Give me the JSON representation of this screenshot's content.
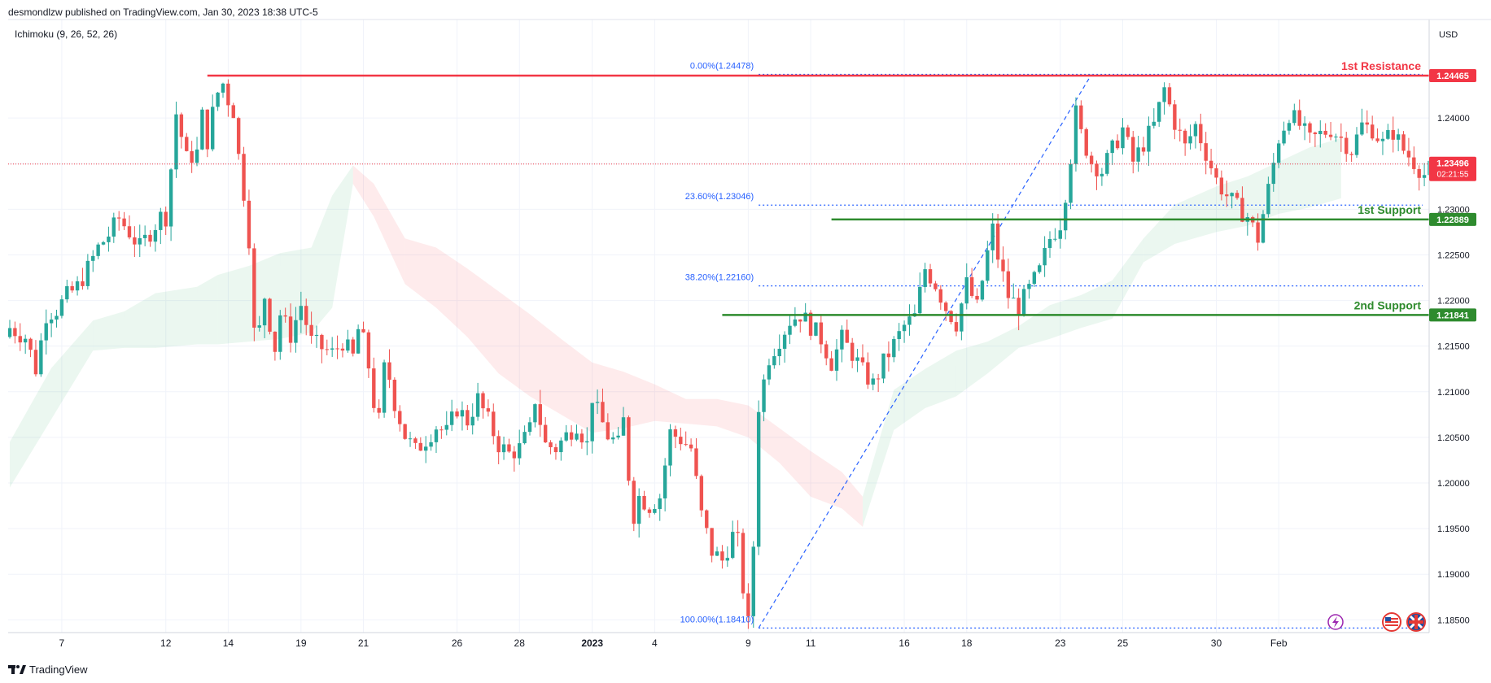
{
  "header": {
    "publisher": "desmondlzw published on TradingView.com, Jan 30, 2023 18:38 UTC-5",
    "indicator": "Ichimoku (9, 26, 52, 26)",
    "currency": "USD"
  },
  "footer": {
    "brand": "TradingView"
  },
  "colors": {
    "up": "#26a69a",
    "down": "#ef5350",
    "resistance": "#f23645",
    "support": "#2e8b2e",
    "fib": "#2962ff"
  },
  "chart_data": {
    "type": "candlestick",
    "y_axis": {
      "range": [
        1.1836,
        1.2508
      ],
      "ticks": [
        "1.24000",
        "1.23500",
        "1.23000",
        "1.22500",
        "1.22000",
        "1.21500",
        "1.21000",
        "1.20500",
        "1.20000",
        "1.19500",
        "1.19000",
        "1.18500"
      ]
    },
    "x_axis": {
      "ticks": [
        {
          "label": "7",
          "bar": 10
        },
        {
          "label": "12",
          "bar": 30
        },
        {
          "label": "14",
          "bar": 42
        },
        {
          "label": "19",
          "bar": 56
        },
        {
          "label": "21",
          "bar": 68
        },
        {
          "label": "26",
          "bar": 86
        },
        {
          "label": "28",
          "bar": 98
        },
        {
          "label": "2023",
          "bar": 112
        },
        {
          "label": "4",
          "bar": 124
        },
        {
          "label": "9",
          "bar": 142
        },
        {
          "label": "11",
          "bar": 154
        },
        {
          "label": "16",
          "bar": 172
        },
        {
          "label": "18",
          "bar": 184
        },
        {
          "label": "23",
          "bar": 202
        },
        {
          "label": "25",
          "bar": 214
        },
        {
          "label": "30",
          "bar": 232
        },
        {
          "label": "Feb",
          "bar": 244
        }
      ]
    },
    "levels": [
      {
        "name": "1st Resistance",
        "price": 1.24465,
        "label": "1.24465",
        "kind": "resistance"
      },
      {
        "name": "1st Support",
        "price": 1.22889,
        "label": "1.22889",
        "kind": "support"
      },
      {
        "name": "2nd Support",
        "price": 1.21841,
        "label": "1.21841",
        "kind": "support"
      }
    ],
    "current_price": {
      "label": "1.23496",
      "countdown": "02:21:55",
      "price": 1.23496
    },
    "fibonacci": [
      {
        "label": "0.00%(1.24478)",
        "price": 1.24478
      },
      {
        "label": "23.60%(1.23046)",
        "price": 1.23046
      },
      {
        "label": "38.20%(1.22160)",
        "price": 1.2216
      },
      {
        "label": "100.00%(1.18410)",
        "price": 1.1841
      }
    ],
    "fib_anchors": [
      {
        "bar": 144,
        "price": 1.1841
      },
      {
        "bar": 208,
        "price": 1.24478
      }
    ],
    "cloud_points": [
      [
        0,
        1.1995,
        1.2045
      ],
      [
        8,
        1.207,
        1.2126
      ],
      [
        16,
        1.2145,
        1.2178
      ],
      [
        22,
        1.2148,
        1.2188
      ],
      [
        28,
        1.2148,
        1.2208
      ],
      [
        36,
        1.2152,
        1.2215
      ],
      [
        40,
        1.2152,
        1.2228
      ],
      [
        46,
        1.2155,
        1.2238
      ],
      [
        52,
        1.2158,
        1.2252
      ],
      [
        58,
        1.2165,
        1.2258
      ],
      [
        62,
        1.2192,
        1.2315
      ],
      [
        66,
        1.2328,
        1.2348
      ],
      [
        70,
        1.2292,
        1.2328
      ],
      [
        76,
        1.2218,
        1.2268
      ],
      [
        82,
        1.2192,
        1.2258
      ],
      [
        88,
        1.216,
        1.2235
      ],
      [
        94,
        1.212,
        1.221
      ],
      [
        100,
        1.2095,
        1.2185
      ],
      [
        106,
        1.2075,
        1.2158
      ],
      [
        112,
        1.2055,
        1.2132
      ],
      [
        118,
        1.206,
        1.2122
      ],
      [
        124,
        1.2068,
        1.2108
      ],
      [
        130,
        1.2065,
        1.2092
      ],
      [
        136,
        1.2062,
        1.2092
      ],
      [
        142,
        1.205,
        1.2085
      ],
      [
        148,
        1.2022,
        1.206
      ],
      [
        154,
        1.1985,
        1.2035
      ],
      [
        160,
        1.1972,
        1.2012
      ],
      [
        164,
        1.1952,
        1.1985
      ],
      [
        170,
        1.2058,
        1.2102
      ],
      [
        176,
        1.2082,
        1.2125
      ],
      [
        182,
        1.2095,
        1.2145
      ],
      [
        188,
        1.212,
        1.2155
      ],
      [
        194,
        1.2148,
        1.2172
      ],
      [
        200,
        1.2158,
        1.2195
      ],
      [
        206,
        1.217,
        1.2206
      ],
      [
        212,
        1.218,
        1.2222
      ],
      [
        218,
        1.2242,
        1.2268
      ],
      [
        224,
        1.2262,
        1.2305
      ],
      [
        232,
        1.2275,
        1.2325
      ],
      [
        238,
        1.2282,
        1.2336
      ],
      [
        244,
        1.2295,
        1.2352
      ],
      [
        250,
        1.2302,
        1.2368
      ],
      [
        256,
        1.2312,
        1.2378
      ]
    ],
    "close_path": [
      [
        0,
        1.217
      ],
      [
        3,
        1.216
      ],
      [
        5,
        1.2125
      ],
      [
        7,
        1.2185
      ],
      [
        9,
        1.219
      ],
      [
        11,
        1.2205
      ],
      [
        13,
        1.2215
      ],
      [
        15,
        1.2235
      ],
      [
        17,
        1.2258
      ],
      [
        19,
        1.2272
      ],
      [
        21,
        1.229
      ],
      [
        23,
        1.2275
      ],
      [
        25,
        1.2258
      ],
      [
        27,
        1.2275
      ],
      [
        29,
        1.2292
      ],
      [
        30,
        1.2292
      ],
      [
        31,
        1.2345
      ],
      [
        32,
        1.2405
      ],
      [
        34,
        1.2355
      ],
      [
        36,
        1.2362
      ],
      [
        37,
        1.2402
      ],
      [
        38,
        1.2375
      ],
      [
        39,
        1.2405
      ],
      [
        40,
        1.2428
      ],
      [
        41,
        1.2438
      ],
      [
        42,
        1.242
      ],
      [
        43,
        1.2408
      ],
      [
        44,
        1.2358
      ],
      [
        45,
        1.2318
      ],
      [
        46,
        1.2268
      ],
      [
        47,
        1.2165
      ],
      [
        48,
        1.2168
      ],
      [
        49,
        1.2205
      ],
      [
        50,
        1.2175
      ],
      [
        51,
        1.2148
      ],
      [
        52,
        1.2185
      ],
      [
        54,
        1.2162
      ],
      [
        56,
        1.2195
      ],
      [
        58,
        1.2155
      ],
      [
        60,
        1.2148
      ],
      [
        62,
        1.2142
      ],
      [
        64,
        1.2155
      ],
      [
        66,
        1.2138
      ],
      [
        67,
        1.2168
      ],
      [
        68,
        1.2155
      ],
      [
        69,
        1.2128
      ],
      [
        70,
        1.2088
      ],
      [
        71,
        1.2068
      ],
      [
        72,
        1.2125
      ],
      [
        73,
        1.2115
      ],
      [
        74,
        1.2088
      ],
      [
        76,
        1.2052
      ],
      [
        78,
        1.2035
      ],
      [
        80,
        1.2048
      ],
      [
        82,
        1.2062
      ],
      [
        84,
        1.2055
      ],
      [
        86,
        1.2082
      ],
      [
        88,
        1.2068
      ],
      [
        90,
        1.2092
      ],
      [
        92,
        1.2068
      ],
      [
        94,
        1.2042
      ],
      [
        96,
        1.2032
      ],
      [
        98,
        1.2038
      ],
      [
        100,
        1.2058
      ],
      [
        101,
        1.2092
      ],
      [
        103,
        1.2042
      ],
      [
        105,
        1.2038
      ],
      [
        107,
        1.2052
      ],
      [
        109,
        1.2065
      ],
      [
        111,
        1.2042
      ],
      [
        112,
        1.2095
      ],
      [
        113,
        1.2078
      ],
      [
        115,
        1.2052
      ],
      [
        117,
        1.2042
      ],
      [
        118,
        1.2068
      ],
      [
        119,
        1.2008
      ],
      [
        120,
        1.1965
      ],
      [
        121,
        1.1985
      ],
      [
        123,
        1.1975
      ],
      [
        125,
        1.1985
      ],
      [
        127,
        1.2055
      ],
      [
        129,
        1.2048
      ],
      [
        131,
        1.2038
      ],
      [
        133,
        1.1965
      ],
      [
        135,
        1.1925
      ],
      [
        137,
        1.1915
      ],
      [
        139,
        1.1942
      ],
      [
        140,
        1.1935
      ],
      [
        141,
        1.1885
      ],
      [
        142,
        1.1845
      ],
      [
        143,
        1.1932
      ],
      [
        144,
        1.2085
      ],
      [
        146,
        1.2138
      ],
      [
        148,
        1.2158
      ],
      [
        150,
        1.2178
      ],
      [
        152,
        1.2185
      ],
      [
        154,
        1.2172
      ],
      [
        156,
        1.2158
      ],
      [
        158,
        1.2132
      ],
      [
        160,
        1.2158
      ],
      [
        162,
        1.2142
      ],
      [
        164,
        1.2122
      ],
      [
        166,
        1.2108
      ],
      [
        168,
        1.2132
      ],
      [
        170,
        1.2152
      ],
      [
        172,
        1.2172
      ],
      [
        174,
        1.2182
      ],
      [
        176,
        1.2235
      ],
      [
        178,
        1.2218
      ],
      [
        180,
        1.2192
      ],
      [
        182,
        1.2175
      ],
      [
        184,
        1.2218
      ],
      [
        186,
        1.2192
      ],
      [
        188,
        1.2252
      ],
      [
        189,
        1.2278
      ],
      [
        190,
        1.2248
      ],
      [
        192,
        1.2205
      ],
      [
        194,
        1.2192
      ],
      [
        196,
        1.2212
      ],
      [
        198,
        1.2232
      ],
      [
        200,
        1.2268
      ],
      [
        202,
        1.2285
      ],
      [
        203,
        1.2318
      ],
      [
        204,
        1.2358
      ],
      [
        205,
        1.2405
      ],
      [
        206,
        1.2382
      ],
      [
        208,
        1.2352
      ],
      [
        210,
        1.2342
      ],
      [
        212,
        1.2365
      ],
      [
        214,
        1.2388
      ],
      [
        216,
        1.2352
      ],
      [
        218,
        1.2372
      ],
      [
        220,
        1.2392
      ],
      [
        222,
        1.2432
      ],
      [
        224,
        1.2395
      ],
      [
        226,
        1.2368
      ],
      [
        228,
        1.2392
      ],
      [
        230,
        1.2362
      ],
      [
        232,
        1.2332
      ],
      [
        234,
        1.2315
      ],
      [
        236,
        1.2302
      ],
      [
        238,
        1.2292
      ],
      [
        240,
        1.2268
      ],
      [
        242,
        1.2322
      ],
      [
        244,
        1.2378
      ],
      [
        246,
        1.2405
      ],
      [
        248,
        1.2392
      ],
      [
        250,
        1.2375
      ],
      [
        252,
        1.2382
      ],
      [
        254,
        1.2388
      ],
      [
        256,
        1.2378
      ],
      [
        258,
        1.2365
      ],
      [
        260,
        1.2392
      ],
      [
        262,
        1.2388
      ],
      [
        264,
        1.2372
      ],
      [
        266,
        1.2385
      ],
      [
        268,
        1.2365
      ],
      [
        270,
        1.2352
      ],
      [
        272,
        1.2338
      ],
      [
        274,
        1.2349
      ]
    ]
  }
}
